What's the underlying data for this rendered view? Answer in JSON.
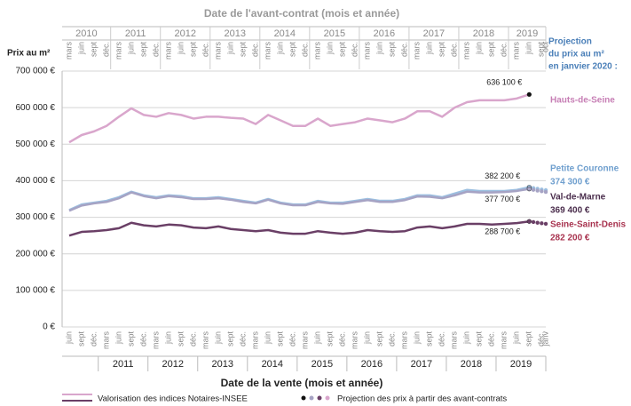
{
  "chart_data": {
    "type": "line",
    "title": "Date de l'avant-contrat (mois et année)",
    "x_label": "Date de la vente (mois et année)",
    "y_label": "Prix au m²",
    "annotation": [
      "Projection",
      "du prix au m²",
      "en janvier 2020 :"
    ],
    "legend": [
      "Valorisation des indices Notaires-INSEE",
      "Projection des prix à partir des avant-contrats"
    ],
    "xlim": [
      "2010-06",
      "2020-01"
    ],
    "ylim": [
      0,
      700000
    ],
    "yticks": [
      {
        "value": 0,
        "label": "0 €"
      },
      {
        "value": 100000,
        "label": "100 000 €"
      },
      {
        "value": 200000,
        "label": "200 000 €"
      },
      {
        "value": 300000,
        "label": "300 000 €"
      },
      {
        "value": 400000,
        "label": "400 000 €"
      },
      {
        "value": 500000,
        "label": "500 000 €"
      },
      {
        "value": 600000,
        "label": "600 000 €"
      },
      {
        "value": 700000,
        "label": "700 000 €"
      }
    ],
    "grid": true,
    "bottom_axis": {
      "years": [
        2011,
        2012,
        2013,
        2014,
        2015,
        2016,
        2017,
        2018,
        2019
      ],
      "ticks": [
        {
          "value": "2010-06",
          "label": "juin"
        },
        {
          "value": "2010-09",
          "label": "sept"
        },
        {
          "value": "2010-12",
          "label": "déc."
        },
        {
          "value": "2011-03",
          "label": "mars"
        },
        {
          "value": "2011-06",
          "label": "juin"
        },
        {
          "value": "2011-09",
          "label": "sept"
        },
        {
          "value": "2011-12",
          "label": "déc."
        },
        {
          "value": "2012-03",
          "label": "mars"
        },
        {
          "value": "2012-06",
          "label": "juin"
        },
        {
          "value": "2012-09",
          "label": "sept"
        },
        {
          "value": "2012-12",
          "label": "déc."
        },
        {
          "value": "2013-03",
          "label": "mars"
        },
        {
          "value": "2013-06",
          "label": "juin"
        },
        {
          "value": "2013-09",
          "label": "sept"
        },
        {
          "value": "2013-12",
          "label": "déc."
        },
        {
          "value": "2014-03",
          "label": "mars"
        },
        {
          "value": "2014-06",
          "label": "juin"
        },
        {
          "value": "2014-09",
          "label": "sept"
        },
        {
          "value": "2014-12",
          "label": "déc."
        },
        {
          "value": "2015-03",
          "label": "mars"
        },
        {
          "value": "2015-06",
          "label": "juin"
        },
        {
          "value": "2015-09",
          "label": "sept"
        },
        {
          "value": "2015-12",
          "label": "déc."
        },
        {
          "value": "2016-03",
          "label": "mars"
        },
        {
          "value": "2016-06",
          "label": "juin"
        },
        {
          "value": "2016-09",
          "label": "sept"
        },
        {
          "value": "2016-12",
          "label": "déc."
        },
        {
          "value": "2017-03",
          "label": "mars"
        },
        {
          "value": "2017-06",
          "label": "juin"
        },
        {
          "value": "2017-09",
          "label": "sept"
        },
        {
          "value": "2017-12",
          "label": "déc."
        },
        {
          "value": "2018-03",
          "label": "mars"
        },
        {
          "value": "2018-06",
          "label": "juin"
        },
        {
          "value": "2018-09",
          "label": "sept"
        },
        {
          "value": "2018-12",
          "label": "déc."
        },
        {
          "value": "2019-03",
          "label": "mars"
        },
        {
          "value": "2019-06",
          "label": "juin"
        },
        {
          "value": "2019-09",
          "label": "sept"
        },
        {
          "value": "2019-12",
          "label": "déc."
        },
        {
          "value": "2020-01",
          "label": "janv"
        }
      ]
    },
    "top_axis": {
      "years": [
        2010,
        2011,
        2012,
        2013,
        2014,
        2015,
        2016,
        2017,
        2018,
        2019
      ],
      "ticks": [
        {
          "value": "2010-03",
          "label": "mars"
        },
        {
          "value": "2010-06",
          "label": "juin"
        },
        {
          "value": "2010-09",
          "label": "sept"
        },
        {
          "value": "2010-12",
          "label": "déc."
        },
        {
          "value": "2011-03",
          "label": "mars"
        },
        {
          "value": "2011-06",
          "label": "juin"
        },
        {
          "value": "2011-09",
          "label": "sept"
        },
        {
          "value": "2011-12",
          "label": "déc."
        },
        {
          "value": "2012-03",
          "label": "mars"
        },
        {
          "value": "2012-06",
          "label": "juin"
        },
        {
          "value": "2012-09",
          "label": "sept"
        },
        {
          "value": "2012-12",
          "label": "déc."
        },
        {
          "value": "2013-03",
          "label": "mars"
        },
        {
          "value": "2013-06",
          "label": "juin"
        },
        {
          "value": "2013-09",
          "label": "sept"
        },
        {
          "value": "2013-12",
          "label": "déc."
        },
        {
          "value": "2014-03",
          "label": "mars"
        },
        {
          "value": "2014-06",
          "label": "juin"
        },
        {
          "value": "2014-09",
          "label": "sept"
        },
        {
          "value": "2014-12",
          "label": "déc."
        },
        {
          "value": "2015-03",
          "label": "mars"
        },
        {
          "value": "2015-06",
          "label": "juin"
        },
        {
          "value": "2015-09",
          "label": "sept"
        },
        {
          "value": "2015-12",
          "label": "déc."
        },
        {
          "value": "2016-03",
          "label": "mars"
        },
        {
          "value": "2016-06",
          "label": "juin"
        },
        {
          "value": "2016-09",
          "label": "sept"
        },
        {
          "value": "2016-12",
          "label": "déc."
        },
        {
          "value": "2017-03",
          "label": "mars"
        },
        {
          "value": "2017-06",
          "label": "juin"
        },
        {
          "value": "2017-09",
          "label": "sept"
        },
        {
          "value": "2017-12",
          "label": "déc."
        },
        {
          "value": "2018-03",
          "label": "mars"
        },
        {
          "value": "2018-06",
          "label": "juin"
        },
        {
          "value": "2018-09",
          "label": "sept"
        },
        {
          "value": "2018-12",
          "label": "déc."
        },
        {
          "value": "2019-03",
          "label": "mars"
        },
        {
          "value": "2019-06",
          "label": "juin"
        },
        {
          "value": "2019-09",
          "label": "sept"
        },
        {
          "value": "2019-10",
          "label": "oct"
        }
      ]
    },
    "x": [
      "2010-06",
      "2010-09",
      "2010-12",
      "2011-03",
      "2011-06",
      "2011-09",
      "2011-12",
      "2012-03",
      "2012-06",
      "2012-09",
      "2012-12",
      "2013-03",
      "2013-06",
      "2013-09",
      "2013-12",
      "2014-03",
      "2014-06",
      "2014-09",
      "2014-12",
      "2015-03",
      "2015-06",
      "2015-09",
      "2015-12",
      "2016-03",
      "2016-06",
      "2016-09",
      "2016-12",
      "2017-03",
      "2017-06",
      "2017-09",
      "2017-12",
      "2018-03",
      "2018-06",
      "2018-09",
      "2018-12",
      "2019-03",
      "2019-06",
      "2019-09"
    ],
    "projection_x": [
      "2019-09",
      "2019-10",
      "2019-11",
      "2019-12",
      "2020-01"
    ],
    "series": [
      {
        "name": "Hauts-de-Seine",
        "color": "#d9a6cc",
        "label_color": "#c77fb5",
        "values": [
          505000,
          525000,
          535000,
          550000,
          575000,
          598000,
          580000,
          575000,
          585000,
          580000,
          570000,
          575000,
          575000,
          572000,
          570000,
          555000,
          580000,
          565000,
          550000,
          550000,
          570000,
          550000,
          555000,
          560000,
          570000,
          565000,
          560000,
          570000,
          590000,
          590000,
          575000,
          600000,
          615000,
          620000,
          620000,
          620000,
          625000,
          636100
        ],
        "value_labels": [
          null,
          null,
          null,
          null,
          null,
          null,
          null,
          null,
          null,
          null,
          null,
          null,
          null,
          null,
          null,
          null,
          null,
          null,
          null,
          null,
          null,
          null,
          null,
          null,
          null,
          null,
          null,
          null,
          null,
          null,
          null,
          null,
          null,
          null,
          null,
          null,
          null,
          "636 100 €"
        ]
      },
      {
        "name": "Petite Couronne",
        "color": "#9cbfe0",
        "label_color": "#6f9fce",
        "values": [
          320000,
          335000,
          340000,
          345000,
          355000,
          370000,
          360000,
          355000,
          360000,
          358000,
          352000,
          352000,
          355000,
          350000,
          345000,
          340000,
          350000,
          340000,
          335000,
          335000,
          345000,
          340000,
          340000,
          345000,
          350000,
          345000,
          345000,
          350000,
          360000,
          360000,
          355000,
          365000,
          375000,
          372000,
          372000,
          372000,
          375000,
          382200
        ],
        "value_labels": [
          null,
          null,
          null,
          null,
          null,
          null,
          null,
          null,
          null,
          null,
          null,
          null,
          null,
          null,
          null,
          null,
          null,
          null,
          null,
          null,
          null,
          null,
          null,
          null,
          null,
          null,
          null,
          null,
          null,
          null,
          null,
          null,
          null,
          null,
          null,
          null,
          null,
          "382 200 €"
        ],
        "projection": [
          382200,
          380000,
          378000,
          376000,
          374300
        ],
        "projection_labels": [
          null,
          null,
          null,
          null,
          "374 300 €"
        ]
      },
      {
        "name": "Val-de-Marne",
        "color": "#a6a3c4",
        "label_color": "#4b2e4d",
        "values": [
          318000,
          332000,
          338000,
          342000,
          352000,
          368000,
          358000,
          352000,
          358000,
          355000,
          350000,
          350000,
          352000,
          348000,
          342000,
          338000,
          348000,
          338000,
          333000,
          333000,
          342000,
          338000,
          337000,
          342000,
          347000,
          342000,
          342000,
          347000,
          357000,
          356000,
          352000,
          360000,
          370000,
          368000,
          368000,
          369000,
          372000,
          377700
        ],
        "value_labels": [
          null,
          null,
          null,
          null,
          null,
          null,
          null,
          null,
          null,
          null,
          null,
          null,
          null,
          null,
          null,
          null,
          null,
          null,
          null,
          null,
          null,
          null,
          null,
          null,
          null,
          null,
          null,
          null,
          null,
          null,
          null,
          null,
          null,
          null,
          null,
          null,
          null,
          "377 700 €"
        ],
        "projection": [
          377700,
          375000,
          373000,
          371000,
          369400
        ],
        "projection_labels": [
          null,
          null,
          null,
          null,
          "369 400 €"
        ]
      },
      {
        "name": "Seine-Saint-Denis",
        "color": "#6a3f66",
        "label_color": "#a8334f",
        "values": [
          250000,
          260000,
          262000,
          265000,
          270000,
          285000,
          278000,
          275000,
          280000,
          278000,
          272000,
          270000,
          275000,
          268000,
          265000,
          262000,
          265000,
          258000,
          255000,
          255000,
          262000,
          258000,
          255000,
          258000,
          265000,
          262000,
          260000,
          262000,
          272000,
          275000,
          270000,
          275000,
          282000,
          282000,
          280000,
          282000,
          284000,
          288700
        ],
        "value_labels": [
          null,
          null,
          null,
          null,
          null,
          null,
          null,
          null,
          null,
          null,
          null,
          null,
          null,
          null,
          null,
          null,
          null,
          null,
          null,
          null,
          null,
          null,
          null,
          null,
          null,
          null,
          null,
          null,
          null,
          null,
          null,
          null,
          null,
          null,
          null,
          null,
          null,
          "288 700 €"
        ],
        "projection": [
          288700,
          287000,
          285000,
          283500,
          282200
        ],
        "projection_labels": [
          null,
          null,
          null,
          null,
          "282 200 €"
        ]
      }
    ]
  }
}
